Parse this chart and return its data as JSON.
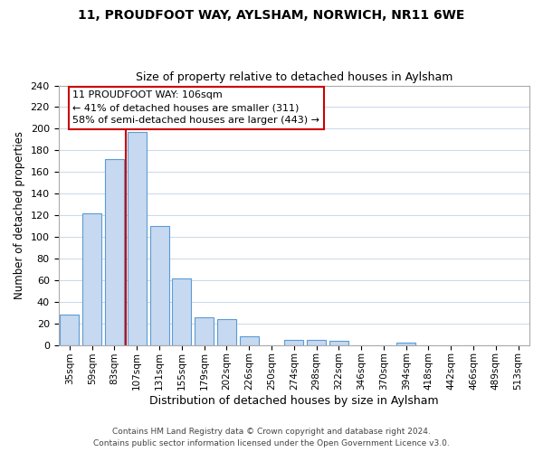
{
  "title": "11, PROUDFOOT WAY, AYLSHAM, NORWICH, NR11 6WE",
  "subtitle": "Size of property relative to detached houses in Aylsham",
  "xlabel": "Distribution of detached houses by size in Aylsham",
  "ylabel": "Number of detached properties",
  "bar_labels": [
    "35sqm",
    "59sqm",
    "83sqm",
    "107sqm",
    "131sqm",
    "155sqm",
    "179sqm",
    "202sqm",
    "226sqm",
    "250sqm",
    "274sqm",
    "298sqm",
    "322sqm",
    "346sqm",
    "370sqm",
    "394sqm",
    "418sqm",
    "442sqm",
    "466sqm",
    "489sqm",
    "513sqm"
  ],
  "bar_heights": [
    28,
    122,
    172,
    197,
    110,
    62,
    26,
    24,
    8,
    0,
    5,
    5,
    4,
    0,
    0,
    2,
    0,
    0,
    0,
    0,
    0
  ],
  "bar_color": "#c6d9f0",
  "bar_edge_color": "#5b9bd5",
  "vline_x_index": 3,
  "vline_color": "#cc0000",
  "ylim": [
    0,
    240
  ],
  "yticks": [
    0,
    20,
    40,
    60,
    80,
    100,
    120,
    140,
    160,
    180,
    200,
    220,
    240
  ],
  "annotation_line1": "11 PROUDFOOT WAY: 106sqm",
  "annotation_line2": "← 41% of detached houses are smaller (311)",
  "annotation_line3": "58% of semi-detached houses are larger (443) →",
  "footer_line1": "Contains HM Land Registry data © Crown copyright and database right 2024.",
  "footer_line2": "Contains public sector information licensed under the Open Government Licence v3.0.",
  "background_color": "#ffffff",
  "grid_color": "#c8d8ea"
}
